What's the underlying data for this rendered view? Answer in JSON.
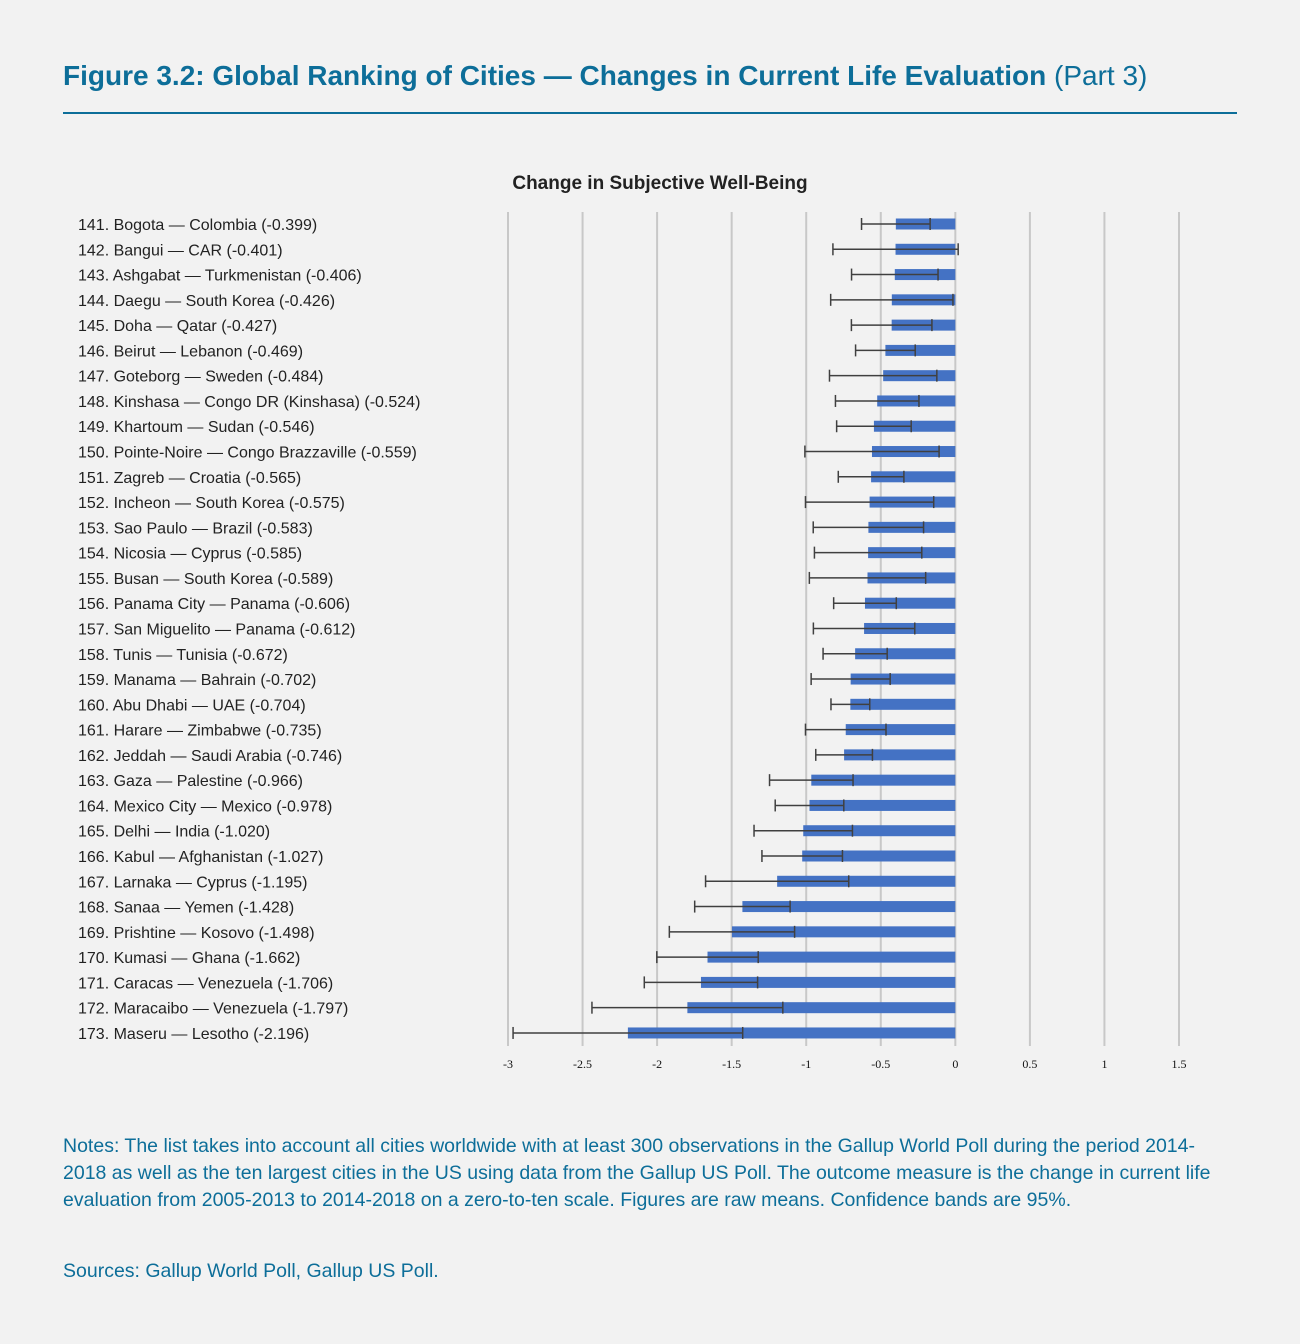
{
  "header": {
    "title": "Figure 3.2: Global Ranking of Cities — Changes in Current Life Evaluation",
    "title_suffix": "(Part 3)"
  },
  "chart_data": {
    "type": "bar",
    "orientation": "horizontal",
    "title": "Change in Subjective Well-Being",
    "xlim": [
      -3,
      1.5
    ],
    "x_ticks": [
      -3,
      -2.5,
      -2,
      -1.5,
      -1,
      -0.5,
      0,
      0.5,
      1,
      1.5
    ],
    "grid": "vertical",
    "colors": {
      "bar": "#4472c4",
      "error_bar": "#404040",
      "grid": "#c8c8c8"
    },
    "categories": [
      "141. Bogota — Colombia (-0.399)",
      "142. Bangui — CAR (-0.401)",
      "143. Ashgabat — Turkmenistan (-0.406)",
      "144. Daegu — South Korea (-0.426)",
      "145. Doha — Qatar (-0.427)",
      "146. Beirut — Lebanon (-0.469)",
      "147. Goteborg — Sweden (-0.484)",
      "148. Kinshasa — Congo DR (Kinshasa) (-0.524)",
      "149. Khartoum — Sudan (-0.546)",
      "150. Pointe-Noire — Congo Brazzaville (-0.559)",
      "151. Zagreb — Croatia (-0.565)",
      "152. Incheon — South Korea (-0.575)",
      "153. Sao Paulo — Brazil (-0.583)",
      "154. Nicosia — Cyprus (-0.585)",
      "155. Busan — South Korea (-0.589)",
      "156. Panama City — Panama (-0.606)",
      "157. San Miguelito — Panama (-0.612)",
      "158. Tunis — Tunisia (-0.672)",
      "159. Manama — Bahrain (-0.702)",
      "160. Abu Dhabi — UAE (-0.704)",
      "161. Harare — Zimbabwe (-0.735)",
      "162. Jeddah — Saudi Arabia (-0.746)",
      "163. Gaza — Palestine (-0.966)",
      "164. Mexico City — Mexico (-0.978)",
      "165. Delhi — India (-1.020)",
      "166. Kabul — Afghanistan (-1.027)",
      "167. Larnaka — Cyprus (-1.195)",
      "168. Sanaa — Yemen (-1.428)",
      "169. Prishtine — Kosovo (-1.498)",
      "170. Kumasi — Ghana (-1.662)",
      "171. Caracas — Venezuela (-1.706)",
      "172. Maracaibo — Venezuela (-1.797)",
      "173. Maseru — Lesotho (-2.196)"
    ],
    "values": [
      -0.399,
      -0.401,
      -0.406,
      -0.426,
      -0.427,
      -0.469,
      -0.484,
      -0.524,
      -0.546,
      -0.559,
      -0.565,
      -0.575,
      -0.583,
      -0.585,
      -0.589,
      -0.606,
      -0.612,
      -0.672,
      -0.702,
      -0.704,
      -0.735,
      -0.746,
      -0.966,
      -0.978,
      -1.02,
      -1.027,
      -1.195,
      -1.428,
      -1.498,
      -1.662,
      -1.706,
      -1.797,
      -2.196
    ],
    "ci_half_width": [
      0.23,
      0.42,
      0.29,
      0.41,
      0.27,
      0.2,
      0.36,
      0.28,
      0.25,
      0.45,
      0.22,
      0.43,
      0.37,
      0.36,
      0.39,
      0.21,
      0.34,
      0.215,
      0.265,
      0.13,
      0.27,
      0.19,
      0.28,
      0.23,
      0.33,
      0.27,
      0.48,
      0.32,
      0.42,
      0.34,
      0.38,
      0.64,
      0.77
    ]
  },
  "notes": "Notes: The list takes into account all cities worldwide with at least 300 observations in the Gallup World Poll during the period 2014-2018 as well as the ten largest cities in the US using data from the Gallup US Poll. The outcome measure is the change in current life evaluation from 2005-2013 to 2014-2018 on a zero-to-ten scale. Figures are raw means. Confidence bands are 95%.",
  "sources": "Sources: Gallup World Poll, Gallup US Poll."
}
